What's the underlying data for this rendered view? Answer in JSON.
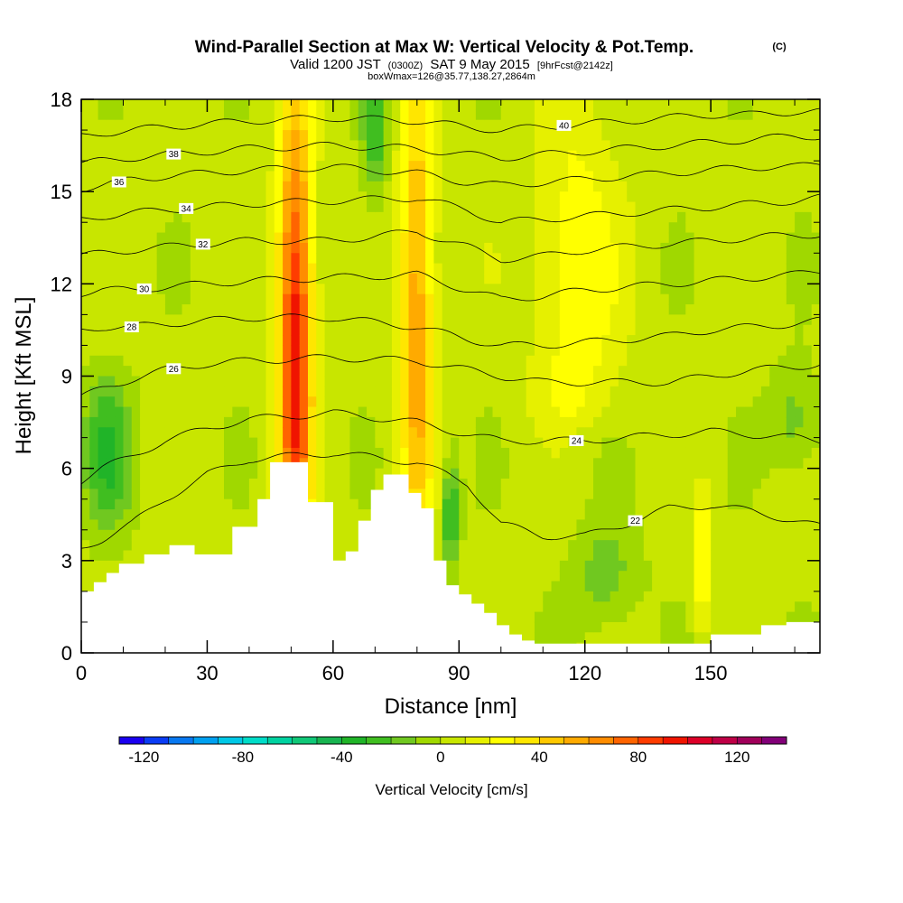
{
  "header": {
    "title": "Wind-Parallel Section at Max W: Vertical Velocity & Pot.Temp.",
    "copyright_mark": "(C)",
    "valid_prefix": "Valid 1200 JST",
    "valid_utc": "(0300Z)",
    "valid_date": "SAT 9 May 2015",
    "forecast_tag": "[9hrFcst@2142z]",
    "box_info": "boxWmax=126@35.77,138.27,2864m"
  },
  "colorbar": {
    "label": "Vertical Velocity [cm/s]",
    "tick_labels": [
      "-120",
      "-80",
      "-40",
      "0",
      "40",
      "80",
      "120"
    ],
    "tick_values": [
      -120,
      -80,
      -40,
      0,
      40,
      80,
      120
    ],
    "bin_edges": [
      -130,
      -120,
      -110,
      -100,
      -90,
      -80,
      -70,
      -60,
      -50,
      -40,
      -30,
      -20,
      -10,
      0,
      10,
      20,
      30,
      40,
      50,
      60,
      70,
      80,
      90,
      100,
      110,
      120,
      130,
      140
    ],
    "colors": [
      "#1a00f0",
      "#0a3cf5",
      "#0878f0",
      "#00a0f0",
      "#00c8e6",
      "#00dcc8",
      "#00d2a0",
      "#10c878",
      "#18b450",
      "#20b428",
      "#40be20",
      "#70c820",
      "#a0d800",
      "#c8e600",
      "#e6f000",
      "#ffff00",
      "#ffe600",
      "#ffc800",
      "#ffaa00",
      "#ff8c00",
      "#ff6400",
      "#ff3c00",
      "#f01400",
      "#dc0028",
      "#be0046",
      "#a0005a",
      "#820078"
    ]
  },
  "chart_data": {
    "type": "heatmap",
    "xlabel": "Distance [nm]",
    "ylabel": "Height [Kft MSL]",
    "xlim": [
      0,
      176
    ],
    "ylim": [
      0,
      18
    ],
    "x_ticks": [
      0,
      30,
      60,
      90,
      120,
      150
    ],
    "y_ticks": [
      0,
      3,
      6,
      9,
      12,
      15,
      18
    ],
    "fill_variable": "Vertical Velocity [cm/s]",
    "updraft_bands": [
      {
        "x_center": 51,
        "half_width": 4,
        "y_range": [
          5,
          18
        ],
        "peak": 95,
        "peak_height": 10
      },
      {
        "x_center": 80,
        "half_width": 4,
        "y_range": [
          4.5,
          18
        ],
        "peak": 55,
        "peak_height": 11
      },
      {
        "x_center": 118,
        "half_width": 10,
        "y_range": [
          8,
          18
        ],
        "peak": 25,
        "peak_height": 12
      },
      {
        "x_center": 148,
        "half_width": 2,
        "y_range": [
          1,
          5
        ],
        "peak": 30,
        "peak_height": 3
      }
    ],
    "downdraft_bands": [
      {
        "x_center": 6,
        "half_width": 6,
        "y_range": [
          4,
          8
        ],
        "peak": -35,
        "peak_height": 6.5
      },
      {
        "x_center": 88,
        "half_width": 2,
        "y_range": [
          3,
          6
        ],
        "peak": -40,
        "peak_height": 4.5
      },
      {
        "x_center": 70,
        "half_width": 3,
        "y_range": [
          14,
          18
        ],
        "peak": -30,
        "peak_height": 17
      },
      {
        "x_center": 125,
        "half_width": 8,
        "y_range": [
          1,
          4
        ],
        "peak": -20,
        "peak_height": 2.5
      },
      {
        "x_center": 170,
        "half_width": 6,
        "y_range": [
          6,
          9
        ],
        "peak": -20,
        "peak_height": 7.5
      }
    ],
    "terrain": {
      "x": [
        0,
        3,
        6,
        9,
        12,
        15,
        18,
        21,
        24,
        27,
        30,
        33,
        36,
        39,
        42,
        45,
        48,
        51,
        54,
        57,
        60,
        63,
        66,
        69,
        72,
        75,
        78,
        81,
        84,
        87,
        90,
        93,
        96,
        99,
        102,
        105,
        108,
        111,
        114,
        117,
        120,
        123,
        126,
        129,
        132,
        135,
        138,
        141,
        144,
        147,
        150,
        153,
        156,
        159,
        162,
        165,
        168,
        171,
        174,
        176
      ],
      "height": [
        2.0,
        2.3,
        2.6,
        2.9,
        2.9,
        3.2,
        3.2,
        3.5,
        3.5,
        3.2,
        3.2,
        3.2,
        4.1,
        4.1,
        5.0,
        6.2,
        6.2,
        6.2,
        4.9,
        4.9,
        3.0,
        3.3,
        4.3,
        5.3,
        5.8,
        5.8,
        5.2,
        4.7,
        3.0,
        2.2,
        1.9,
        1.6,
        1.3,
        0.9,
        0.6,
        0.4,
        0.3,
        0.3,
        0.3,
        0.3,
        0.3,
        0.3,
        0.3,
        0.3,
        0.3,
        0.3,
        0.3,
        0.3,
        0.3,
        0.3,
        0.6,
        0.6,
        0.6,
        0.6,
        0.9,
        0.9,
        1.0,
        1.0,
        1.0,
        1.0
      ]
    },
    "theta_contours": [
      {
        "value": 22,
        "label": "22",
        "label_x": 132,
        "x": [
          0,
          5,
          12,
          20,
          30,
          40,
          60,
          80,
          92,
          100,
          110,
          120,
          130,
          140,
          150,
          160,
          170,
          176
        ],
        "y": [
          3.4,
          3.7,
          4.2,
          5.0,
          5.8,
          6.3,
          6.5,
          6.2,
          5.5,
          4.2,
          3.8,
          3.8,
          4.2,
          4.7,
          4.8,
          4.6,
          4.3,
          4.1
        ]
      },
      {
        "value": 24,
        "label": "24",
        "label_x": 118,
        "x": [
          0,
          5,
          12,
          20,
          30,
          40,
          60,
          80,
          92,
          100,
          110,
          120,
          130,
          140,
          150,
          160,
          170,
          176
        ],
        "y": [
          5.6,
          6.0,
          6.4,
          6.9,
          7.3,
          7.6,
          7.8,
          7.5,
          7.1,
          6.9,
          6.9,
          6.9,
          7.0,
          7.1,
          7.2,
          7.1,
          7.0,
          6.9
        ]
      },
      {
        "value": 26,
        "label": "26",
        "label_x": 22,
        "x": [
          0,
          5,
          12,
          20,
          30,
          40,
          60,
          80,
          92,
          100,
          110,
          120,
          130,
          140,
          150,
          160,
          170,
          176
        ],
        "y": [
          8.3,
          8.6,
          8.9,
          9.2,
          9.4,
          9.5,
          9.6,
          9.5,
          9.2,
          9.0,
          8.8,
          8.8,
          8.8,
          8.8,
          9.0,
          9.2,
          9.3,
          9.4
        ]
      },
      {
        "value": 28,
        "label": "28",
        "label_x": 12,
        "x": [
          0,
          5,
          12,
          20,
          30,
          40,
          60,
          80,
          92,
          100,
          110,
          120,
          130,
          140,
          150,
          160,
          170,
          176
        ],
        "y": [
          10.5,
          10.6,
          10.6,
          10.7,
          10.8,
          10.9,
          10.9,
          10.6,
          10.2,
          10.0,
          10.0,
          10.1,
          10.2,
          10.3,
          10.5,
          10.6,
          10.7,
          10.8
        ]
      },
      {
        "value": 30,
        "label": "30",
        "label_x": 15,
        "x": [
          0,
          5,
          12,
          20,
          30,
          40,
          60,
          80,
          92,
          100,
          110,
          120,
          130,
          140,
          150,
          160,
          170,
          176
        ],
        "y": [
          11.7,
          11.8,
          11.8,
          11.9,
          12.0,
          12.1,
          12.2,
          12.3,
          11.8,
          11.5,
          11.6,
          11.8,
          11.9,
          12.0,
          12.1,
          12.2,
          12.3,
          12.4
        ]
      },
      {
        "value": 32,
        "label": "32",
        "label_x": 29,
        "x": [
          0,
          5,
          12,
          20,
          30,
          40,
          60,
          80,
          92,
          100,
          110,
          120,
          130,
          140,
          150,
          160,
          170,
          176
        ],
        "y": [
          12.9,
          13.0,
          13.1,
          13.2,
          13.3,
          13.4,
          13.4,
          13.7,
          13.2,
          12.8,
          12.9,
          13.1,
          13.2,
          13.3,
          13.4,
          13.5,
          13.6,
          13.6
        ]
      },
      {
        "value": 34,
        "label": "34",
        "label_x": 25,
        "x": [
          0,
          5,
          12,
          20,
          30,
          40,
          60,
          80,
          92,
          100,
          110,
          120,
          130,
          140,
          150,
          160,
          170,
          176
        ],
        "y": [
          14.1,
          14.2,
          14.3,
          14.4,
          14.5,
          14.6,
          14.7,
          14.8,
          14.4,
          14.0,
          14.1,
          14.2,
          14.3,
          14.4,
          14.5,
          14.6,
          14.7,
          14.8
        ]
      },
      {
        "value": 36,
        "label": "36",
        "label_x": 9,
        "x": [
          0,
          5,
          12,
          20,
          30,
          40,
          60,
          80,
          92,
          100,
          110,
          120,
          130,
          140,
          150,
          160,
          170,
          176
        ],
        "y": [
          15.1,
          15.2,
          15.4,
          15.5,
          15.6,
          15.7,
          15.8,
          15.6,
          15.3,
          15.2,
          15.3,
          15.4,
          15.5,
          15.6,
          15.7,
          15.8,
          15.8,
          15.9
        ]
      },
      {
        "value": 38,
        "label": "38",
        "label_x": 22,
        "x": [
          0,
          5,
          12,
          20,
          30,
          40,
          60,
          80,
          92,
          100,
          110,
          120,
          130,
          140,
          150,
          160,
          170,
          176
        ],
        "y": [
          15.9,
          16.0,
          16.1,
          16.2,
          16.3,
          16.4,
          16.5,
          16.4,
          16.2,
          16.1,
          16.2,
          16.3,
          16.4,
          16.5,
          16.6,
          16.7,
          16.8,
          16.8
        ]
      },
      {
        "value": 40,
        "label": "40",
        "label_x": 115,
        "x": [
          0,
          5,
          12,
          20,
          30,
          40,
          60,
          80,
          92,
          100,
          110,
          120,
          130,
          140,
          150,
          160,
          170,
          176
        ],
        "y": [
          16.8,
          16.9,
          17.0,
          17.1,
          17.2,
          17.3,
          17.4,
          17.3,
          17.1,
          17.0,
          17.1,
          17.2,
          17.3,
          17.4,
          17.5,
          17.5,
          17.6,
          17.6
        ]
      }
    ]
  }
}
